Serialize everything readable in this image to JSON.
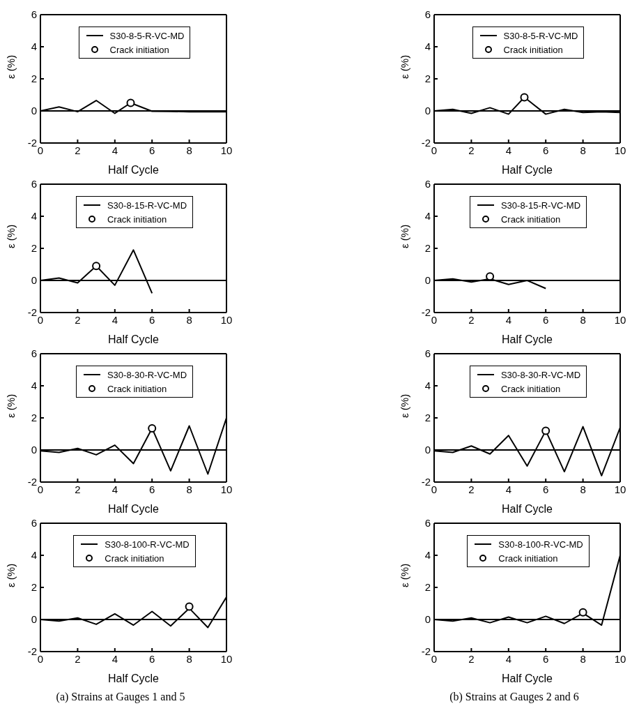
{
  "chart_data": [
    {
      "type": "line",
      "xlabel": "Half Cycle",
      "ylabel": "ε (%)",
      "xlim": [
        0,
        10
      ],
      "xticks": [
        0,
        2,
        4,
        6,
        8,
        10
      ],
      "ylim": [
        -2,
        6
      ],
      "yticks": [
        -2,
        0,
        2,
        4,
        6
      ],
      "legend": "top",
      "ref_lines": [
        {
          "axis": "y",
          "value": 0,
          "color": "#000000"
        }
      ],
      "series": [
        {
          "name": "S30-8-5-R-VC-MD",
          "color": "#000000",
          "line_style": "solid",
          "x": [
            0,
            1,
            2,
            3,
            4,
            4.85,
            6,
            7,
            8,
            9,
            10
          ],
          "values": [
            0,
            0.25,
            -0.05,
            0.65,
            -0.15,
            0.5,
            -0.02,
            -0.03,
            -0.05,
            -0.05,
            -0.05
          ]
        },
        {
          "name": "Crack initiation",
          "type": "scatter",
          "marker": "circle",
          "color": "#000000",
          "x": [
            4.85
          ],
          "values": [
            0.5
          ]
        }
      ]
    },
    {
      "type": "line",
      "xlabel": "Half Cycle",
      "ylabel": "ε (%)",
      "xlim": [
        0,
        10
      ],
      "xticks": [
        0,
        2,
        4,
        6,
        8,
        10
      ],
      "ylim": [
        -2,
        6
      ],
      "yticks": [
        -2,
        0,
        2,
        4,
        6
      ],
      "legend": "top",
      "ref_lines": [
        {
          "axis": "y",
          "value": 0,
          "color": "#000000"
        }
      ],
      "series": [
        {
          "name": "S30-8-15-R-VC-MD",
          "color": "#000000",
          "line_style": "solid",
          "x": [
            0,
            1,
            2,
            3,
            4,
            5,
            6
          ],
          "values": [
            0,
            0.15,
            -0.15,
            0.9,
            -0.3,
            1.9,
            -0.8
          ]
        },
        {
          "name": "Crack initiation",
          "type": "scatter",
          "marker": "circle",
          "color": "#000000",
          "x": [
            3
          ],
          "values": [
            0.9
          ]
        }
      ]
    },
    {
      "type": "line",
      "xlabel": "Half Cycle",
      "ylabel": "ε (%)",
      "xlim": [
        0,
        10
      ],
      "xticks": [
        0,
        2,
        4,
        6,
        8,
        10
      ],
      "ylim": [
        -2,
        6
      ],
      "yticks": [
        -2,
        0,
        2,
        4,
        6
      ],
      "legend": "top",
      "ref_lines": [
        {
          "axis": "y",
          "value": 0,
          "color": "#000000"
        }
      ],
      "series": [
        {
          "name": "S30-8-30-R-VC-MD",
          "color": "#000000",
          "line_style": "solid",
          "x": [
            0,
            1,
            2,
            3,
            4,
            5,
            6,
            7,
            8,
            9,
            10
          ],
          "values": [
            -0.05,
            -0.15,
            0.1,
            -0.3,
            0.3,
            -0.85,
            1.35,
            -1.3,
            1.5,
            -1.5,
            2.0
          ]
        },
        {
          "name": "Crack initiation",
          "type": "scatter",
          "marker": "circle",
          "color": "#000000",
          "x": [
            6
          ],
          "values": [
            1.35
          ]
        }
      ]
    },
    {
      "type": "line",
      "xlabel": "Half Cycle",
      "ylabel": "ε (%)",
      "xlim": [
        0,
        10
      ],
      "xticks": [
        0,
        2,
        4,
        6,
        8,
        10
      ],
      "ylim": [
        -2,
        6
      ],
      "yticks": [
        -2,
        0,
        2,
        4,
        6
      ],
      "legend": "top",
      "ref_lines": [
        {
          "axis": "y",
          "value": 0,
          "color": "#000000"
        }
      ],
      "annotations": [
        "(a) Strains at Gauges 1 and 5"
      ],
      "series": [
        {
          "name": "S30-8-100-R-VC-MD",
          "color": "#000000",
          "line_style": "solid",
          "x": [
            0,
            1,
            2,
            3,
            4,
            5,
            6,
            7,
            8,
            9,
            10
          ],
          "values": [
            0,
            -0.1,
            0.1,
            -0.3,
            0.35,
            -0.35,
            0.5,
            -0.4,
            0.7,
            -0.5,
            1.4
          ]
        },
        {
          "name": "Crack initiation",
          "type": "scatter",
          "marker": "circle",
          "color": "#000000",
          "x": [
            8
          ],
          "values": [
            0.8
          ]
        }
      ]
    },
    {
      "type": "line",
      "xlabel": "Half Cycle",
      "ylabel": "ε (%)",
      "xlim": [
        0,
        10
      ],
      "xticks": [
        0,
        2,
        4,
        6,
        8,
        10
      ],
      "ylim": [
        -2,
        6
      ],
      "yticks": [
        -2,
        0,
        2,
        4,
        6
      ],
      "legend": "top",
      "ref_lines": [
        {
          "axis": "y",
          "value": 0,
          "color": "#000000"
        }
      ],
      "series": [
        {
          "name": "S30-8-5-R-VC-MD",
          "color": "#000000",
          "line_style": "solid",
          "x": [
            0,
            1,
            2,
            3,
            4,
            4.85,
            6,
            7,
            8,
            9,
            10
          ],
          "values": [
            0,
            0.1,
            -0.15,
            0.2,
            -0.2,
            0.85,
            -0.2,
            0.1,
            -0.1,
            -0.05,
            -0.1
          ]
        },
        {
          "name": "Crack initiation",
          "type": "scatter",
          "marker": "circle",
          "color": "#000000",
          "x": [
            4.85
          ],
          "values": [
            0.85
          ]
        }
      ]
    },
    {
      "type": "line",
      "xlabel": "Half Cycle",
      "ylabel": "ε (%)",
      "xlim": [
        0,
        10
      ],
      "xticks": [
        0,
        2,
        4,
        6,
        8,
        10
      ],
      "ylim": [
        -2,
        6
      ],
      "yticks": [
        -2,
        0,
        2,
        4,
        6
      ],
      "legend": "top",
      "ref_lines": [
        {
          "axis": "y",
          "value": 0,
          "color": "#000000"
        }
      ],
      "series": [
        {
          "name": "S30-8-15-R-VC-MD",
          "color": "#000000",
          "line_style": "solid",
          "x": [
            0,
            1,
            2,
            3,
            4,
            5,
            6
          ],
          "values": [
            0,
            0.1,
            -0.1,
            0.1,
            -0.25,
            0,
            -0.5
          ]
        },
        {
          "name": "Crack initiation",
          "type": "scatter",
          "marker": "circle",
          "color": "#000000",
          "x": [
            3
          ],
          "values": [
            0.25
          ]
        }
      ]
    },
    {
      "type": "line",
      "xlabel": "Half Cycle",
      "ylabel": "ε (%)",
      "xlim": [
        0,
        10
      ],
      "xticks": [
        0,
        2,
        4,
        6,
        8,
        10
      ],
      "ylim": [
        -2,
        6
      ],
      "yticks": [
        -2,
        0,
        2,
        4,
        6
      ],
      "legend": "top",
      "ref_lines": [
        {
          "axis": "y",
          "value": 0,
          "color": "#000000"
        }
      ],
      "series": [
        {
          "name": "S30-8-30-R-VC-MD",
          "color": "#000000",
          "line_style": "solid",
          "x": [
            0,
            1,
            2,
            3,
            4,
            5,
            6,
            7,
            8,
            9,
            10
          ],
          "values": [
            -0.05,
            -0.15,
            0.25,
            -0.25,
            0.9,
            -1.0,
            1.2,
            -1.35,
            1.45,
            -1.6,
            1.4
          ]
        },
        {
          "name": "Crack initiation",
          "type": "scatter",
          "marker": "circle",
          "color": "#000000",
          "x": [
            6
          ],
          "values": [
            1.2
          ]
        }
      ]
    },
    {
      "type": "line",
      "xlabel": "Half Cycle",
      "ylabel": "ε (%)",
      "xlim": [
        0,
        10
      ],
      "xticks": [
        0,
        2,
        4,
        6,
        8,
        10
      ],
      "ylim": [
        -2,
        6
      ],
      "yticks": [
        -2,
        0,
        2,
        4,
        6
      ],
      "legend": "top",
      "ref_lines": [
        {
          "axis": "y",
          "value": 0,
          "color": "#000000"
        }
      ],
      "annotations": [
        "(b) Strains at Gauges 2 and 6"
      ],
      "series": [
        {
          "name": "S30-8-100-R-VC-MD",
          "color": "#000000",
          "line_style": "solid",
          "x": [
            0,
            1,
            2,
            3,
            4,
            5,
            6,
            7,
            8,
            9,
            10
          ],
          "values": [
            0,
            -0.1,
            0.1,
            -0.2,
            0.15,
            -0.2,
            0.2,
            -0.25,
            0.4,
            -0.35,
            4.0
          ]
        },
        {
          "name": "Crack initiation",
          "type": "scatter",
          "marker": "circle",
          "color": "#000000",
          "x": [
            8
          ],
          "values": [
            0.45
          ]
        }
      ]
    }
  ]
}
